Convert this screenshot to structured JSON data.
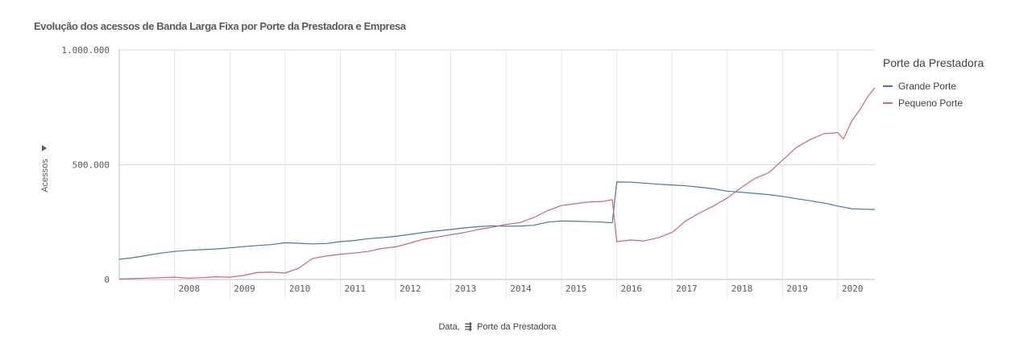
{
  "chart_data": {
    "type": "line",
    "title": "Evolução dos acessos de Banda Larga Fixa por Porte da Prestadora e Empresa",
    "xlabel": "Data,",
    "xlabel_dimension": "Porte da Prestadora",
    "ylabel": "Acessos",
    "ylim": [
      0,
      1000000
    ],
    "xlim": [
      2007.0,
      2020.67
    ],
    "y_ticks": [
      {
        "value": 0,
        "label": "0"
      },
      {
        "value": 500000,
        "label": "500.000"
      },
      {
        "value": 1000000,
        "label": "1.000.000"
      }
    ],
    "x_ticks": [
      {
        "value": 2008,
        "label": "2008"
      },
      {
        "value": 2009,
        "label": "2009"
      },
      {
        "value": 2010,
        "label": "2010"
      },
      {
        "value": 2011,
        "label": "2011"
      },
      {
        "value": 2012,
        "label": "2012"
      },
      {
        "value": 2013,
        "label": "2013"
      },
      {
        "value": 2014,
        "label": "2014"
      },
      {
        "value": 2015,
        "label": "2015"
      },
      {
        "value": 2016,
        "label": "2016"
      },
      {
        "value": 2017,
        "label": "2017"
      },
      {
        "value": 2018,
        "label": "2018"
      },
      {
        "value": 2019,
        "label": "2019"
      },
      {
        "value": 2020,
        "label": "2020"
      }
    ],
    "grid": true,
    "legend_position": "right",
    "legend_title": "Porte da Prestadora",
    "series": [
      {
        "name": "Grande Porte",
        "color": "#4477aa",
        "x": [
          2007.0,
          2007.25,
          2007.5,
          2007.75,
          2008.0,
          2008.25,
          2008.5,
          2008.75,
          2009.0,
          2009.25,
          2009.5,
          2009.75,
          2010.0,
          2010.25,
          2010.5,
          2010.75,
          2011.0,
          2011.25,
          2011.5,
          2011.75,
          2012.0,
          2012.25,
          2012.5,
          2012.75,
          2013.0,
          2013.25,
          2013.5,
          2013.75,
          2014.0,
          2014.25,
          2014.5,
          2014.75,
          2015.0,
          2015.25,
          2015.5,
          2015.75,
          2015.92,
          2016.0,
          2016.25,
          2016.5,
          2016.75,
          2017.0,
          2017.25,
          2017.5,
          2017.75,
          2018.0,
          2018.25,
          2018.5,
          2018.75,
          2019.0,
          2019.25,
          2019.5,
          2019.75,
          2020.0,
          2020.25,
          2020.5,
          2020.67
        ],
        "values": [
          88000,
          95000,
          105000,
          115000,
          122000,
          127000,
          130000,
          133000,
          138000,
          143000,
          148000,
          152000,
          160000,
          158000,
          155000,
          157000,
          165000,
          170000,
          178000,
          182000,
          188000,
          196000,
          205000,
          212000,
          218000,
          225000,
          230000,
          234000,
          232000,
          233000,
          236000,
          250000,
          255000,
          254000,
          252000,
          250000,
          247000,
          425000,
          424000,
          420000,
          415000,
          412000,
          408000,
          402000,
          395000,
          385000,
          380000,
          375000,
          370000,
          362000,
          352000,
          343000,
          333000,
          320000,
          308000,
          306000,
          305000
        ]
      },
      {
        "name": "Pequeno Porte",
        "color": "#cc6677",
        "x": [
          2007.0,
          2007.25,
          2007.5,
          2007.75,
          2008.0,
          2008.25,
          2008.5,
          2008.75,
          2009.0,
          2009.25,
          2009.5,
          2009.75,
          2010.0,
          2010.25,
          2010.5,
          2010.75,
          2011.0,
          2011.25,
          2011.5,
          2011.75,
          2012.0,
          2012.25,
          2012.5,
          2012.75,
          2013.0,
          2013.25,
          2013.5,
          2013.75,
          2014.0,
          2014.25,
          2014.5,
          2014.75,
          2015.0,
          2015.25,
          2015.5,
          2015.75,
          2015.92,
          2016.0,
          2016.25,
          2016.5,
          2016.75,
          2017.0,
          2017.25,
          2017.5,
          2017.75,
          2018.0,
          2018.25,
          2018.5,
          2018.75,
          2019.0,
          2019.25,
          2019.5,
          2019.75,
          2020.0,
          2020.1,
          2020.25,
          2020.4,
          2020.55,
          2020.67
        ],
        "values": [
          2000,
          4000,
          6000,
          8000,
          10000,
          6000,
          8000,
          12000,
          10000,
          18000,
          30000,
          32000,
          28000,
          50000,
          92000,
          102000,
          110000,
          115000,
          122000,
          135000,
          142000,
          158000,
          175000,
          185000,
          195000,
          205000,
          218000,
          228000,
          240000,
          248000,
          270000,
          300000,
          322000,
          330000,
          338000,
          340000,
          348000,
          165000,
          172000,
          168000,
          182000,
          205000,
          255000,
          290000,
          320000,
          355000,
          400000,
          440000,
          465000,
          520000,
          575000,
          610000,
          635000,
          640000,
          612000,
          690000,
          740000,
          800000,
          835000
        ]
      }
    ]
  }
}
